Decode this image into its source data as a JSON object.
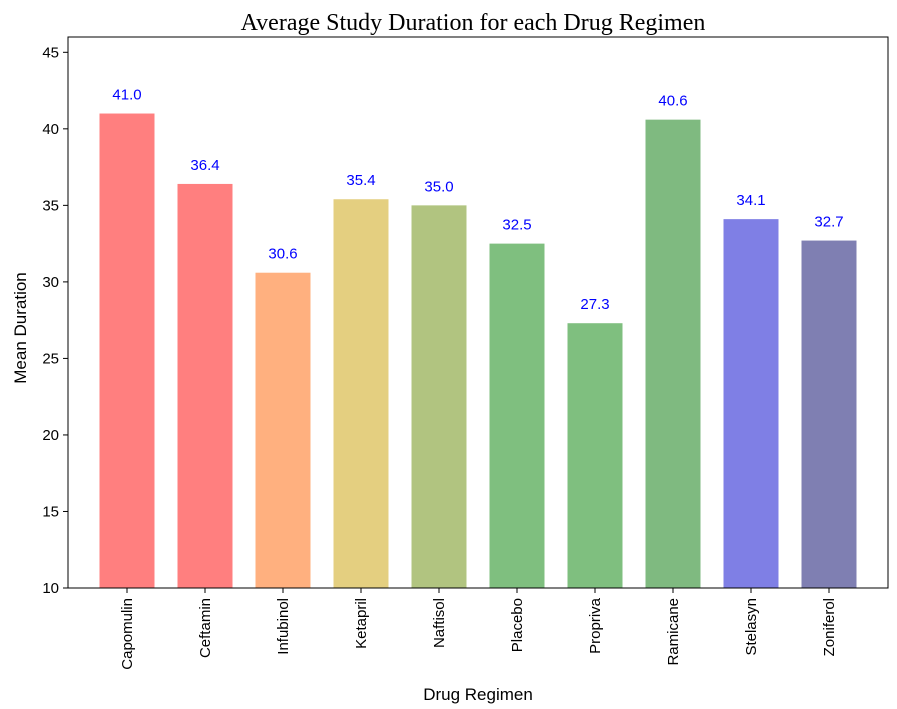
{
  "chart_data": {
    "type": "bar",
    "title": "Average Study Duration for each Drug Regimen",
    "xlabel": "Drug Regimen",
    "ylabel": "Mean Duration",
    "categories": [
      "Capomulin",
      "Ceftamin",
      "Infubinol",
      "Ketapril",
      "Naftisol",
      "Placebo",
      "Propriva",
      "Ramicane",
      "Stelasyn",
      "Zoniferol"
    ],
    "values": [
      41.0,
      36.4,
      30.6,
      35.4,
      35.0,
      32.5,
      27.3,
      40.6,
      34.1,
      32.7
    ],
    "data_labels": [
      "41.0",
      "36.4",
      "30.6",
      "35.4",
      "35.0",
      "32.5",
      "27.3",
      "40.6",
      "34.1",
      "32.7"
    ],
    "colors": [
      "#ff7f7f",
      "#ff7f7f",
      "#ffb07f",
      "#e4cf80",
      "#b1c480",
      "#7fbf7f",
      "#7fbf7f",
      "#7fba80",
      "#7f7fe5",
      "#7f7fb2"
    ],
    "data_label_color": "#0000ff",
    "ylim": [
      10,
      46
    ],
    "yticks": [
      10,
      15,
      20,
      25,
      30,
      35,
      40,
      45
    ],
    "grid": false,
    "legend": "none"
  }
}
